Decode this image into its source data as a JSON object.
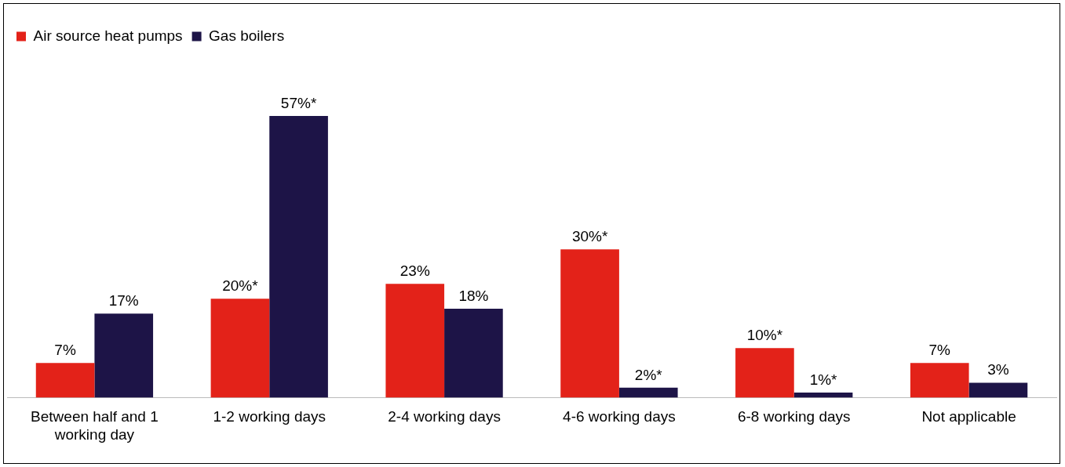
{
  "chart_data": {
    "type": "bar",
    "categories": [
      "Between half and 1 working day",
      "1-2 working days",
      "2-4 working days",
      "4-6 working days",
      "6-8 working days",
      "Not applicable"
    ],
    "series": [
      {
        "name": "Air source heat pumps",
        "color": "#e32219",
        "values": [
          7,
          20,
          23,
          30,
          10,
          7
        ],
        "value_labels": [
          "7%",
          "20%*",
          "23%",
          "30%*",
          "10%*",
          "7%"
        ]
      },
      {
        "name": "Gas boilers",
        "color": "#1d1447",
        "values": [
          17,
          57,
          18,
          2,
          1,
          3
        ],
        "value_labels": [
          "17%",
          "57%*",
          "18%",
          "2%*",
          "1%*",
          "3%"
        ]
      }
    ],
    "legend": "top left",
    "grid": false
  }
}
